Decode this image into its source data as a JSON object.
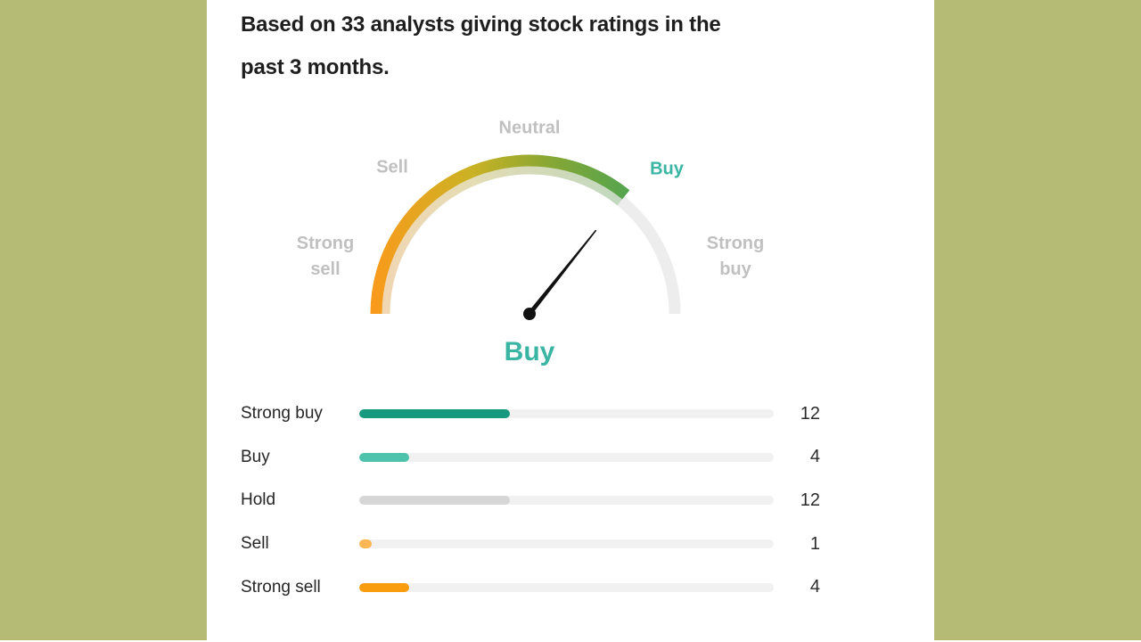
{
  "card": {
    "subtitle": "Based on 33 analysts giving stock ratings in the past 3 months.",
    "subtitle_lines": [
      "Based on 33 analysts giving stock ratings in the",
      "past 3 months."
    ]
  },
  "gauge": {
    "labels": [
      "Strong sell",
      "Sell",
      "Neutral",
      "Buy",
      "Strong buy"
    ],
    "strong_sell_lines": [
      "Strong",
      "sell"
    ],
    "strong_buy_lines": [
      "Strong",
      "buy"
    ],
    "current_rating": "Buy"
  },
  "ratings": {
    "total": 33,
    "rows": [
      {
        "label": "Strong buy",
        "value": 12,
        "color": "#17997f"
      },
      {
        "label": "Buy",
        "value": 4,
        "color": "#4ec2aa"
      },
      {
        "label": "Hold",
        "value": 12,
        "color": "#d6d6d6"
      },
      {
        "label": "Sell",
        "value": 1,
        "color": "#fcb653"
      },
      {
        "label": "Strong sell",
        "value": 4,
        "color": "#f99c0d"
      }
    ]
  },
  "colors": {
    "background": "#b5bb74",
    "panel": "#ffffff",
    "accent_teal": "#3ab5a3",
    "gauge_label_gray": "#c0c0c0",
    "text_dark": "#1e1e1e",
    "bar_track": "#f1f1f1",
    "gauge_track": "#ededed",
    "needle": "#111111",
    "gauge_gradient": [
      "#f89b1c",
      "#cbb224",
      "#8aa733",
      "#55a44e"
    ]
  },
  "chart_data": [
    {
      "type": "gauge",
      "title": "Based on 33 analysts giving stock ratings in the past 3 months.",
      "scale_labels": [
        "Strong sell",
        "Sell",
        "Neutral",
        "Buy",
        "Strong buy"
      ],
      "scale_range": [
        1,
        5
      ],
      "value_estimate": 3.87,
      "value_label": "Buy",
      "needle_angle_deg_above_right_horizontal": 51,
      "arc_fill_sweep_deg": 129,
      "arc_total_sweep_deg": 180,
      "legend_position": "around-dial",
      "notes": "Colored gradient arc (orange to green) fills from Strong sell end up to the needle position in the Buy sector; remainder of dial is light gray."
    },
    {
      "type": "bar",
      "orientation": "horizontal",
      "categories": [
        "Strong buy",
        "Buy",
        "Hold",
        "Sell",
        "Strong sell"
      ],
      "values": [
        12,
        4,
        12,
        1,
        4
      ],
      "total": 33,
      "bar_colors": [
        "#17997f",
        "#4ec2aa",
        "#d6d6d6",
        "#fcb653",
        "#f99c0d"
      ],
      "xlim": [
        0,
        33
      ],
      "data_labels": "values shown right-aligned at row end",
      "grid": false
    }
  ]
}
